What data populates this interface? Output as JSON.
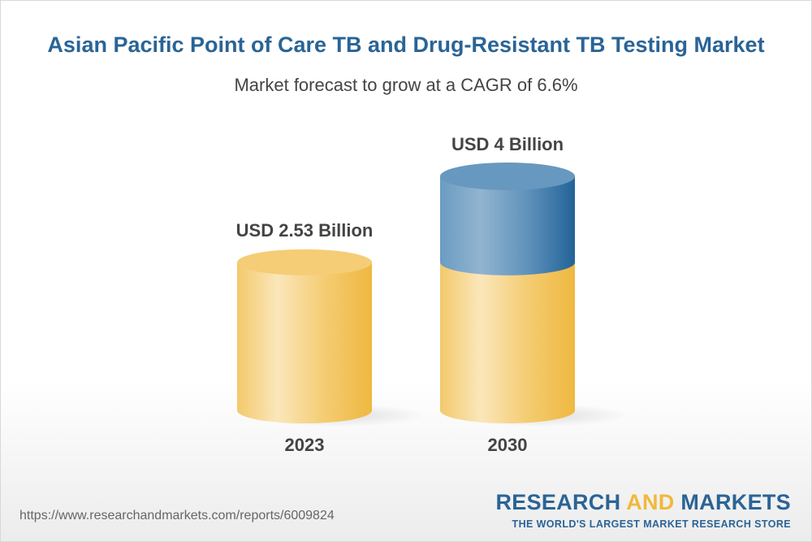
{
  "header": {
    "title": "Asian Pacific Point of Care TB and Drug-Resistant TB Testing Market",
    "subtitle": "Market forecast to grow at a CAGR of 6.6%"
  },
  "chart_data": {
    "type": "bar",
    "style": "3d-cylinder",
    "categories": [
      "2023",
      "2030"
    ],
    "values": [
      2.53,
      4
    ],
    "unit": "USD Billion",
    "data_labels": [
      "USD 2.53 Billion",
      "USD 4 Billion"
    ],
    "colors": {
      "base": "#f2c45a",
      "growth": "#2a6496"
    }
  },
  "footer": {
    "url": "https://www.researchandmarkets.com/reports/6009824",
    "logo_part1": "RESEARCH ",
    "logo_part2": "AND",
    "logo_part3": " MARKETS",
    "tagline": "THE WORLD'S LARGEST MARKET RESEARCH STORE"
  }
}
